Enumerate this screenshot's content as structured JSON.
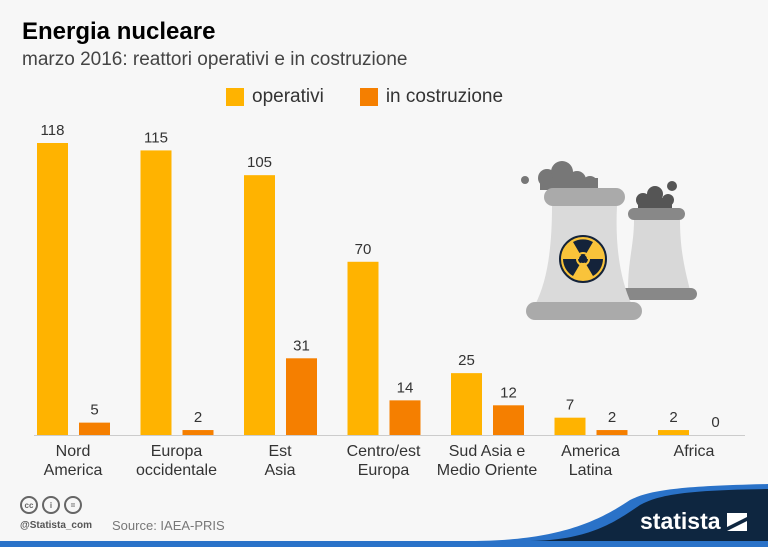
{
  "title": "Energia nucleare",
  "subtitle": "marzo 2016: reattori operativi e in costruzione",
  "footer": {
    "handle": "@Statista_com",
    "source": "Source: IAEA-PRIS",
    "brand": "statista",
    "license_icons": [
      "cc-icon",
      "attribution-icon",
      "no-derivatives-icon"
    ]
  },
  "illustration": "nuclear-power-plant-icon",
  "chart_data": {
    "type": "bar",
    "title": "Energia nucleare",
    "subtitle": "marzo 2016: reattori operativi e in costruzione",
    "categories": [
      [
        "Nord",
        "America"
      ],
      [
        "Europa",
        "occidentale"
      ],
      [
        "Est",
        "Asia"
      ],
      [
        "Centro/est",
        "Europa"
      ],
      [
        "Sud Asia e",
        "Medio Oriente"
      ],
      [
        "America",
        "Latina"
      ],
      [
        "Africa"
      ]
    ],
    "series": [
      {
        "name": "operativi",
        "color": "#ffb300",
        "values": [
          118,
          115,
          105,
          70,
          25,
          7,
          2
        ]
      },
      {
        "name": "in costruzione",
        "color": "#f57f00",
        "values": [
          5,
          2,
          31,
          14,
          12,
          2,
          0
        ]
      }
    ],
    "ylim": [
      0,
      118
    ],
    "grid": false,
    "legend_position": "top"
  }
}
